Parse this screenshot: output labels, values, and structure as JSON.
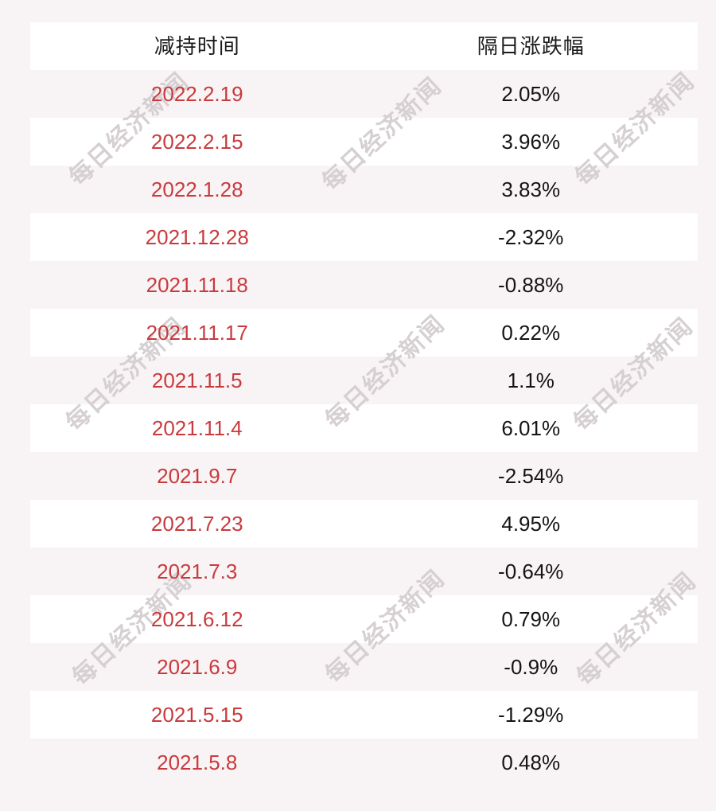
{
  "watermark": {
    "text": "每日经济新闻",
    "color": "#d6d0d3"
  },
  "colors": {
    "page_background": "#f8f3f4",
    "row_white": "#ffffff",
    "date_red": "#c93a3d",
    "value_black": "#141414",
    "header_black": "#1b1b1b"
  },
  "chart_data": {
    "type": "table",
    "title": "",
    "columns": [
      "减持时间",
      "隔日涨跌幅"
    ],
    "rows": [
      [
        "2022.2.19",
        "2.05%"
      ],
      [
        "2022.2.15",
        "3.96%"
      ],
      [
        "2022.1.28",
        "3.83%"
      ],
      [
        "2021.12.28",
        "-2.32%"
      ],
      [
        "2021.11.18",
        "-0.88%"
      ],
      [
        "2021.11.17",
        "0.22%"
      ],
      [
        "2021.11.5",
        "1.1%"
      ],
      [
        "2021.11.4",
        "6.01%"
      ],
      [
        "2021.9.7",
        "-2.54%"
      ],
      [
        "2021.7.23",
        "4.95%"
      ],
      [
        "2021.7.3",
        "-0.64%"
      ],
      [
        "2021.6.12",
        "0.79%"
      ],
      [
        "2021.6.9",
        "-0.9%"
      ],
      [
        "2021.5.15",
        "-1.29%"
      ],
      [
        "2021.5.8",
        "0.48%"
      ]
    ],
    "change_values_pct": [
      2.05,
      3.96,
      3.83,
      -2.32,
      -0.88,
      0.22,
      1.1,
      6.01,
      -2.54,
      4.95,
      -0.64,
      0.79,
      -0.9,
      -1.29,
      0.48
    ],
    "layout": {
      "row_striping": "alternating white/pink",
      "grid": "off",
      "text_align": "center"
    }
  }
}
